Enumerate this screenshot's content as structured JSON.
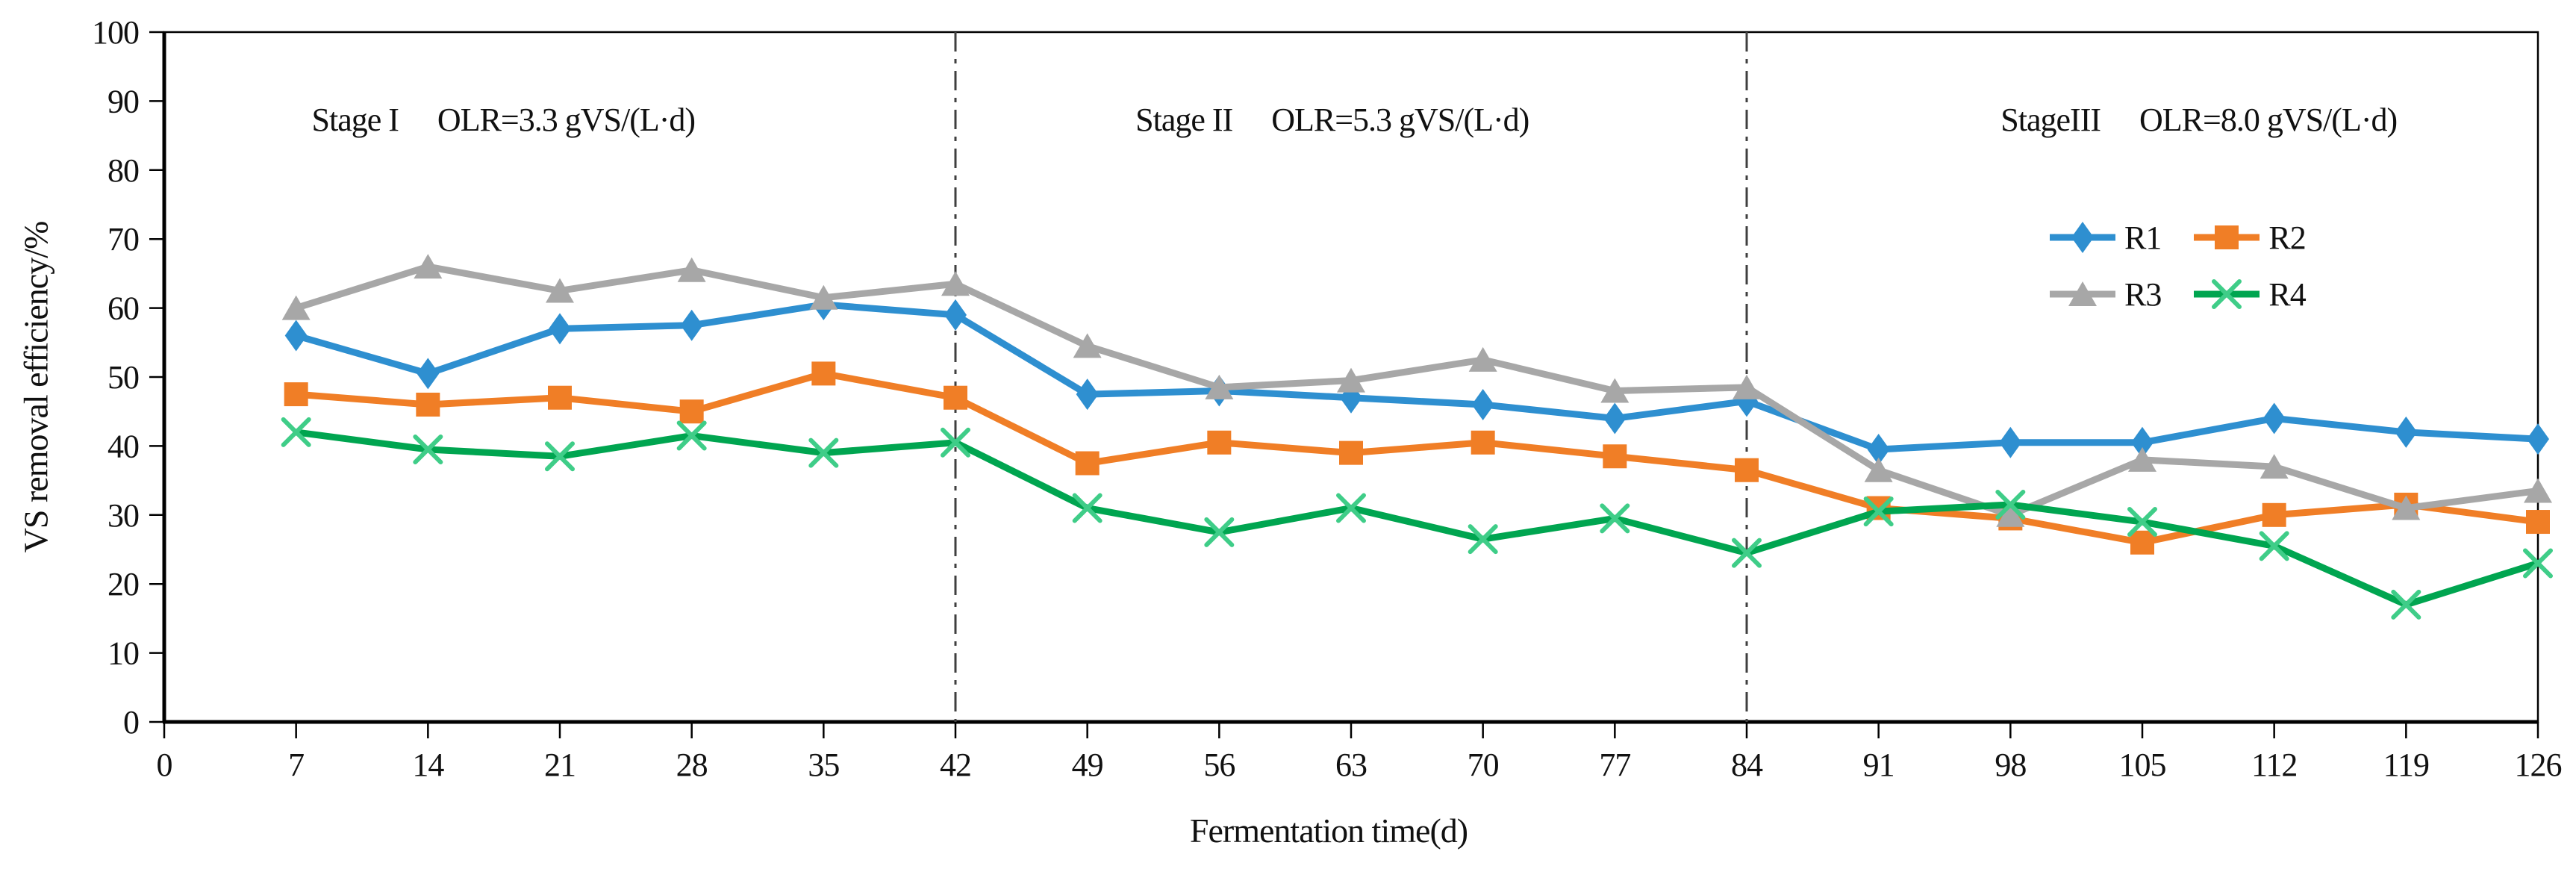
{
  "chart_data": {
    "type": "line",
    "title": "",
    "xlabel": "Fermentation time(d)",
    "ylabel": "VS removal efficiency/%",
    "xlim": [
      0,
      126
    ],
    "ylim": [
      0,
      100
    ],
    "x_ticks": [
      0,
      7,
      14,
      21,
      28,
      35,
      42,
      49,
      56,
      63,
      70,
      77,
      84,
      91,
      98,
      105,
      112,
      119,
      126
    ],
    "y_ticks": [
      0,
      10,
      20,
      30,
      40,
      50,
      60,
      70,
      80,
      90,
      100
    ],
    "grid": "off",
    "x": [
      7,
      14,
      21,
      28,
      35,
      42,
      49,
      56,
      63,
      70,
      77,
      84,
      91,
      98,
      105,
      112,
      119,
      126
    ],
    "series": [
      {
        "name": "R1",
        "marker": "diamond",
        "color": "#2E8FD0",
        "marker_color": "#2E8FD0",
        "values": [
          56,
          50.5,
          57,
          57.5,
          60.5,
          59,
          47.5,
          48,
          47,
          46,
          44,
          46.5,
          39.5,
          40.5,
          40.5,
          44,
          42,
          41
        ]
      },
      {
        "name": "R2",
        "marker": "square",
        "color": "#F07E26",
        "marker_color": "#F07E26",
        "values": [
          47.5,
          46,
          47,
          45,
          50.5,
          47,
          37.5,
          40.5,
          39,
          40.5,
          38.5,
          36.5,
          31,
          29.5,
          26,
          30,
          31.5,
          29
        ]
      },
      {
        "name": "R3",
        "marker": "triangle",
        "color": "#A7A7A7",
        "marker_color": "#A7A7A7",
        "values": [
          60,
          66,
          62.5,
          65.5,
          61.5,
          63.5,
          54.5,
          48.5,
          49.5,
          52.5,
          48,
          48.5,
          36.5,
          30,
          38,
          37,
          31,
          33.5
        ]
      },
      {
        "name": "R4",
        "marker": "x",
        "color": "#00A550",
        "marker_color": "#3FCD88",
        "values": [
          42,
          39.5,
          38.5,
          41.5,
          39,
          40.5,
          31,
          27.5,
          31,
          26.5,
          29.5,
          24.5,
          30.5,
          31.5,
          29,
          25.5,
          17,
          23
        ]
      }
    ],
    "stage_dividers": {
      "days": [
        42,
        84
      ],
      "color": "#3F3F3F",
      "style": "dash-dot"
    },
    "annotations": [
      {
        "stage": "Stage I",
        "olr": "OLR=3.3 gVS/(L·d)",
        "center_day": 18
      },
      {
        "stage": "Stage II",
        "olr": "OLR=5.3 gVS/(L·d)",
        "center_day": 62
      },
      {
        "stage": "StageIII",
        "olr": "OLR=8.0 gVS/(L·d)",
        "center_day": 108
      }
    ],
    "legend": {
      "position": "inside-upper-right",
      "entries": [
        "R1",
        "R2",
        "R3",
        "R4"
      ]
    },
    "axis_color": "#000000",
    "text_color": "#111111"
  }
}
